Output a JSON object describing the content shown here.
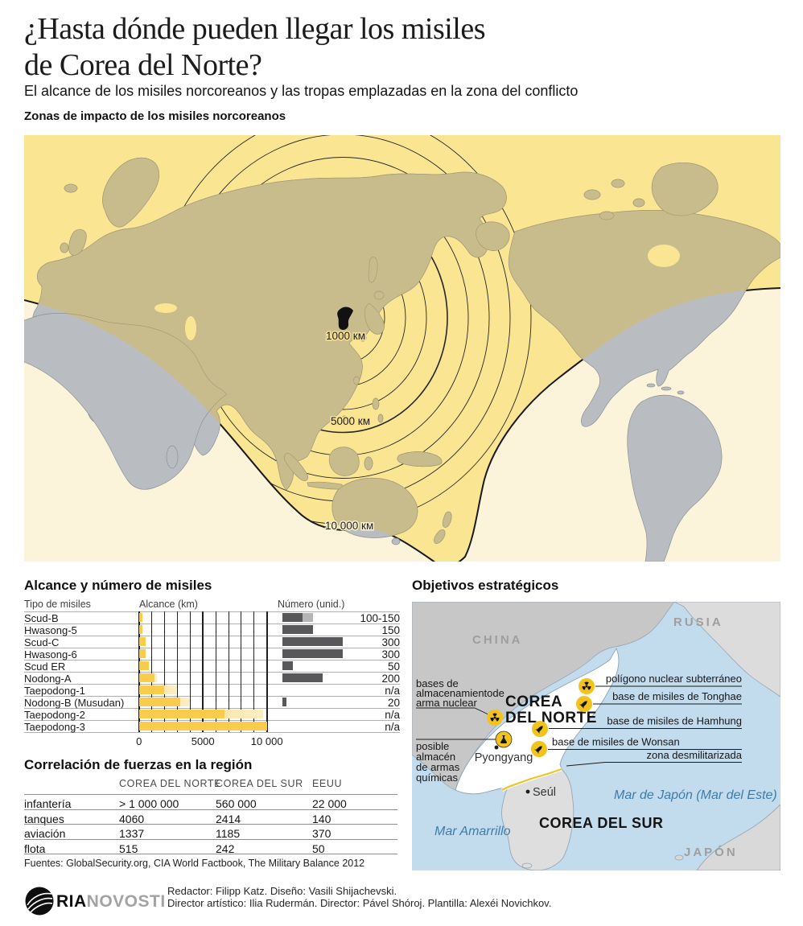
{
  "header": {
    "title_line1": "¿Hasta dónde pueden llegar los misiles",
    "title_line2": "de Corea del Norte?",
    "subtitle": "El alcance de los misiles norcoreanos y las tropas emplazadas en la zona del conflicto",
    "zones_title": "Zonas de impacto de los misiles norcoreanos"
  },
  "world_map": {
    "ring_labels": {
      "r1000": "1000 км",
      "r5000": "5000 км",
      "r10000": "10 000 км"
    }
  },
  "missiles": {
    "section_title": "Alcance y número de misiles",
    "col_type": "Tipo de misiles",
    "col_range": "Alcance (km)",
    "col_number": "Número (unid.)",
    "axis_ticks": [
      "0",
      "5000",
      "10 000"
    ],
    "rows": [
      {
        "name": "Scud-B",
        "range_solid_km": 300,
        "range_max_km": 300,
        "number_label": "100-150",
        "number_units": 100,
        "number_units_max": 150
      },
      {
        "name": "Hwasong-5",
        "range_solid_km": 300,
        "range_max_km": 300,
        "number_label": "150",
        "number_units": 150,
        "number_units_max": 150
      },
      {
        "name": "Scud-C",
        "range_solid_km": 500,
        "range_max_km": 500,
        "number_label": "300",
        "number_units": 300,
        "number_units_max": 300
      },
      {
        "name": "Hwasong-6",
        "range_solid_km": 500,
        "range_max_km": 500,
        "number_label": "300",
        "number_units": 300,
        "number_units_max": 300
      },
      {
        "name": "Scud ER",
        "range_solid_km": 750,
        "range_max_km": 750,
        "number_label": "50",
        "number_units": 50,
        "number_units_max": 50
      },
      {
        "name": "Nodong-A",
        "range_solid_km": 1200,
        "range_max_km": 1400,
        "number_label": "200",
        "number_units": 200,
        "number_units_max": 200
      },
      {
        "name": "Taepodong-1",
        "range_solid_km": 2000,
        "range_max_km": 2900,
        "number_label": "n/a",
        "number_units": 0,
        "number_units_max": 0
      },
      {
        "name": "Nodong-B (Musudan)",
        "range_solid_km": 3200,
        "range_max_km": 3900,
        "number_label": "20",
        "number_units": 20,
        "number_units_max": 20
      },
      {
        "name": "Taepodong-2",
        "range_solid_km": 6700,
        "range_max_km": 9700,
        "number_label": "n/a",
        "number_units": 0,
        "number_units_max": 0
      },
      {
        "name": "Taepodong-3",
        "range_solid_km": 10000,
        "range_max_km": 10000,
        "number_label": "n/a",
        "number_units": 0,
        "number_units_max": 0
      }
    ]
  },
  "forces": {
    "section_title": "Correlación de fuerzas en la región",
    "columns": [
      "COREA DEL NORTE",
      "COREA DEL SUR",
      "EEUU"
    ],
    "rows": [
      [
        "infantería",
        "> 1 000 000",
        "560 000",
        "22 000"
      ],
      [
        "tanques",
        "4060",
        "2414",
        "140"
      ],
      [
        "aviación",
        "1337",
        "1185",
        "370"
      ],
      [
        "flota",
        "515",
        "242",
        "50"
      ]
    ],
    "sources": "Fuentes: GlobalSecurity.org, CIA World Factbook, The Military Balance 2012"
  },
  "strategic": {
    "section_title": "Objetivos estratégicos",
    "countries": {
      "china": "CHINA",
      "rusia": "RUSIA",
      "nk_line1": "COREA",
      "nk_line2": "DEL NORTE",
      "sk": "COREA DEL SUR",
      "japon": "JAPÓN"
    },
    "seas": {
      "yellow": "Mar Amarrillo",
      "japan": "Mar de Japón (Mar del Este)"
    },
    "cities": {
      "pyongyang": "Pyongyang",
      "seoul": "Seúl"
    },
    "targets": {
      "poligono": "polígono nuclear subterráneo",
      "tonghae": "base de misiles de Tonghae",
      "hamhung": "base de misiles de Hamhung",
      "wonsan": "base de misiles de Wonsan",
      "dmz": "zona desmilitarizada"
    },
    "left_labels": {
      "nuclear_storage": [
        "bases de",
        "almacenamientode",
        "arma nuclear"
      ],
      "chemical": [
        "posible",
        "almacén",
        "de armas",
        "químicas"
      ]
    }
  },
  "footer": {
    "logo_ria": "RIA",
    "logo_novosti": "NOVOSTI",
    "credits_line1": "Redactor: Filipp Katz. Diseño: Vasili Shijachevski.",
    "credits_line2": "Director artístico: Ilia Rudermán. Director: Pável Shóroj. Plantilla: Alexéi Novichkov."
  },
  "colors": {
    "range_zone_yellow": "#fae593",
    "out_of_range_cream": "#fcf4da",
    "land_in_range": "#c9bc8c",
    "land_out_of_range": "#b9bcc1",
    "bar_yellow": "#fbcb4b",
    "bar_yellow_light": "#fceec5",
    "number_bar_dark": "#58585a",
    "number_bar_light": "#b5b5b5",
    "sea_blue": "#c2dcee",
    "icon_yellow": "#f2c21d",
    "sea_text_blue": "#3e7ca8"
  },
  "chart_data": [
    {
      "type": "bar",
      "title": "Alcance y número de misiles",
      "categories": [
        "Scud-B",
        "Hwasong-5",
        "Scud-C",
        "Hwasong-6",
        "Scud ER",
        "Nodong-A",
        "Taepodong-1",
        "Nodong-B (Musudan)",
        "Taepodong-2",
        "Taepodong-3"
      ],
      "series": [
        {
          "name": "Alcance mínimo (km)",
          "values": [
            300,
            300,
            500,
            500,
            750,
            1200,
            2000,
            3200,
            6700,
            10000
          ]
        },
        {
          "name": "Alcance máximo (km)",
          "values": [
            300,
            300,
            500,
            500,
            750,
            1400,
            2900,
            3900,
            9700,
            10000
          ]
        },
        {
          "name": "Número (unid.)",
          "values": [
            "100-150",
            "150",
            "300",
            "300",
            "50",
            "200",
            "n/a",
            "20",
            "n/a",
            "n/a"
          ]
        }
      ],
      "xlabel": "Alcance (km)",
      "ylabel": "",
      "xlim": [
        0,
        10000
      ],
      "ticks": [
        0,
        5000,
        10000
      ],
      "grid": true,
      "legend_position": "none"
    },
    {
      "type": "table",
      "title": "Correlación de fuerzas en la región",
      "columns": [
        "",
        "COREA DEL NORTE",
        "COREA DEL SUR",
        "EEUU"
      ],
      "rows": [
        [
          "infantería",
          "> 1 000 000",
          "560 000",
          "22 000"
        ],
        [
          "tanques",
          "4060",
          "2414",
          "140"
        ],
        [
          "aviación",
          "1337",
          "1185",
          "370"
        ],
        [
          "flota",
          "515",
          "242",
          "50"
        ]
      ]
    },
    {
      "type": "map",
      "title": "Zonas de impacto de los misiles norcoreanos",
      "rings_km": [
        1000,
        2000,
        3000,
        4000,
        5000,
        6000,
        7000,
        8000,
        9000,
        10000
      ],
      "labeled_rings_km": [
        1000,
        5000,
        10000
      ],
      "center": "Corea del Norte"
    }
  ]
}
